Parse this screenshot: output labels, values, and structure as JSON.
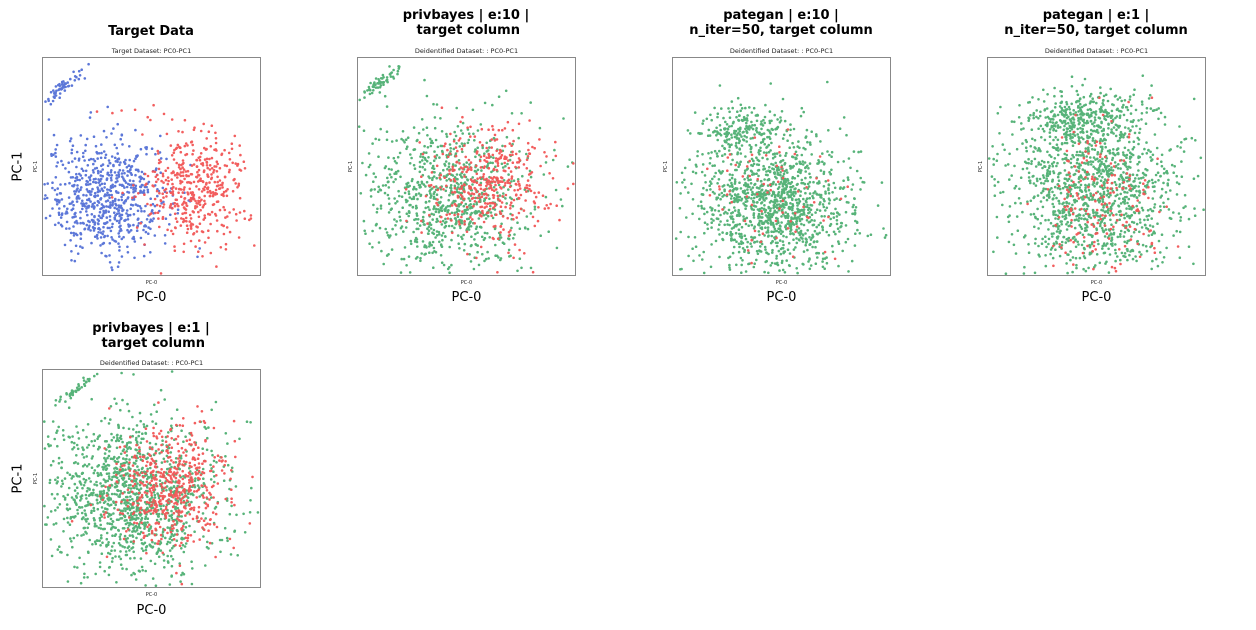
{
  "colors": {
    "group_a": "#5470d6",
    "group_b": "#f25656",
    "group_c": "#4faf72"
  },
  "chart_data": [
    {
      "type": "scatter",
      "title": "Target Data",
      "subtitle": "Target Dataset: PC0-PC1",
      "xlabel": "PC-0",
      "ylabel": "PC-1",
      "inner_xlabel": "PC-0",
      "inner_ylabel": "PC-1",
      "series": [
        {
          "color": "#5470d6",
          "clusters": [
            {
              "cx": 0.09,
              "cy": 0.86,
              "sx": 0.05,
              "sy": 0.03,
              "n": 60,
              "tilt": 0.9
            },
            {
              "cx": 0.3,
              "cy": 0.36,
              "sx": 0.14,
              "sy": 0.13,
              "n": 700
            }
          ]
        },
        {
          "color": "#f25656",
          "clusters": [
            {
              "cx": 0.7,
              "cy": 0.4,
              "sx": 0.12,
              "sy": 0.13,
              "n": 450
            },
            {
              "cx": 0.42,
              "cy": 0.76,
              "sx": 0.07,
              "sy": 0.02,
              "n": 4
            }
          ]
        }
      ]
    },
    {
      "type": "scatter",
      "title": "privbayes | e:10 |\n target column",
      "subtitle": "Deidentified Dataset: : PC0-PC1",
      "xlabel": "PC-0",
      "ylabel": "",
      "inner_xlabel": "PC-0",
      "inner_ylabel": "PC-1",
      "series": [
        {
          "color": "#4faf72",
          "clusters": [
            {
              "cx": 0.1,
              "cy": 0.88,
              "sx": 0.06,
              "sy": 0.03,
              "n": 60,
              "tilt": 0.8
            },
            {
              "cx": 0.4,
              "cy": 0.36,
              "sx": 0.2,
              "sy": 0.17,
              "n": 900
            }
          ]
        },
        {
          "color": "#f25656",
          "clusters": [
            {
              "cx": 0.6,
              "cy": 0.42,
              "sx": 0.14,
              "sy": 0.13,
              "n": 420
            }
          ]
        }
      ]
    },
    {
      "type": "scatter",
      "title": "pategan | e:10 |\nn_iter=50, target column",
      "subtitle": "Deidentified Dataset: : PC0-PC1",
      "xlabel": "PC-0",
      "ylabel": "",
      "inner_xlabel": "PC-0",
      "inner_ylabel": "PC-1",
      "series": [
        {
          "color": "#4faf72",
          "clusters": [
            {
              "cx": 0.32,
              "cy": 0.68,
              "sx": 0.1,
              "sy": 0.05,
              "n": 160
            },
            {
              "cx": 0.46,
              "cy": 0.33,
              "sx": 0.18,
              "sy": 0.17,
              "n": 1300
            }
          ]
        },
        {
          "color": "#f25656",
          "clusters": [
            {
              "cx": 0.47,
              "cy": 0.35,
              "sx": 0.14,
              "sy": 0.15,
              "n": 70
            }
          ]
        }
      ]
    },
    {
      "type": "scatter",
      "title": "pategan | e:1 |\nn_iter=50, target column",
      "subtitle": "Deidentified Dataset: : PC0-PC1",
      "xlabel": "PC-0",
      "ylabel": "",
      "inner_xlabel": "PC-0",
      "inner_ylabel": "PC-1",
      "series": [
        {
          "color": "#4faf72",
          "clusters": [
            {
              "cx": 0.45,
              "cy": 0.72,
              "sx": 0.13,
              "sy": 0.06,
              "n": 300
            },
            {
              "cx": 0.48,
              "cy": 0.38,
              "sx": 0.2,
              "sy": 0.2,
              "n": 1300
            }
          ]
        },
        {
          "color": "#f25656",
          "clusters": [
            {
              "cx": 0.52,
              "cy": 0.34,
              "sx": 0.12,
              "sy": 0.18,
              "n": 180
            }
          ]
        }
      ]
    },
    {
      "type": "scatter",
      "title": "privbayes | e:1 |\n target column",
      "subtitle": "Deidentified Dataset: : PC0-PC1",
      "xlabel": "PC-0",
      "ylabel": "PC-1",
      "inner_xlabel": "PC-0",
      "inner_ylabel": "PC-1",
      "series": [
        {
          "color": "#4faf72",
          "clusters": [
            {
              "cx": 0.17,
              "cy": 0.92,
              "sx": 0.04,
              "sy": 0.02,
              "n": 40,
              "tilt": 0.8
            },
            {
              "cx": 0.4,
              "cy": 0.42,
              "sx": 0.2,
              "sy": 0.18,
              "n": 1300
            }
          ]
        },
        {
          "color": "#f25656",
          "clusters": [
            {
              "cx": 0.6,
              "cy": 0.46,
              "sx": 0.13,
              "sy": 0.13,
              "n": 550
            }
          ]
        }
      ]
    }
  ]
}
